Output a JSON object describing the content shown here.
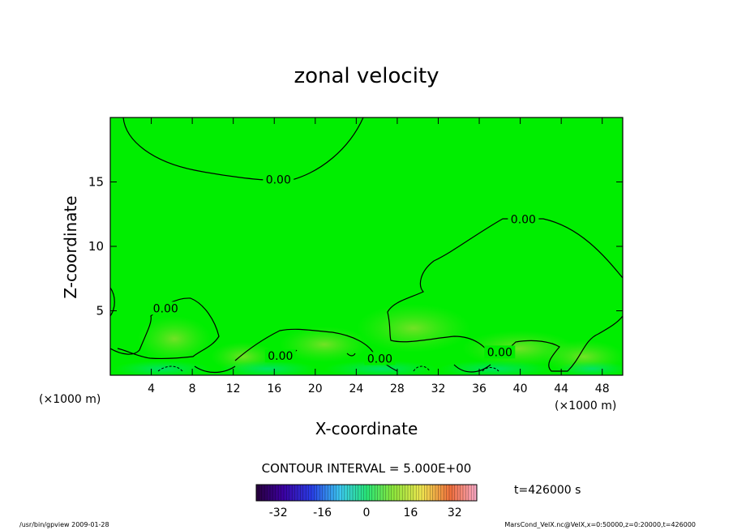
{
  "chart_data": {
    "type": "contour",
    "title": "zonal velocity",
    "xlabel": "X-coordinate",
    "ylabel": "Z-coordinate",
    "x_unit_left": "(×1000 m)",
    "x_unit_right": "(×1000 m)",
    "xlim": [
      0,
      50
    ],
    "ylim": [
      0,
      20
    ],
    "xticks": [
      4,
      8,
      12,
      16,
      20,
      24,
      28,
      32,
      36,
      40,
      44,
      48
    ],
    "yticks": [
      5,
      10,
      15
    ],
    "contour_interval_text": "CONTOUR INTERVAL = 5.000E+00",
    "time_text": "t=426000 s",
    "colorbar": {
      "ticks": [
        -32,
        -16,
        0,
        16,
        32
      ],
      "range": [
        -40,
        40
      ]
    },
    "contour_labels": [
      {
        "text": "0.00",
        "x": 16.4,
        "z": 15.2
      },
      {
        "text": "0.00",
        "x": 40.3,
        "z": 12.1
      },
      {
        "text": "0.00",
        "x": 5.4,
        "z": 5.2
      },
      {
        "text": "0.00",
        "x": 16.6,
        "z": 1.5
      },
      {
        "text": "0.00",
        "x": 26.3,
        "z": 1.3
      },
      {
        "text": "0.00",
        "x": 38.0,
        "z": 1.8
      }
    ],
    "field_color": "#00ee00",
    "contour_color": "#000000"
  },
  "footer": {
    "left": "/usr/bin/gpview   2009-01-28",
    "right": "MarsCond_VelX.nc@VelX,x=0:50000,z=0:20000,t=426000"
  }
}
